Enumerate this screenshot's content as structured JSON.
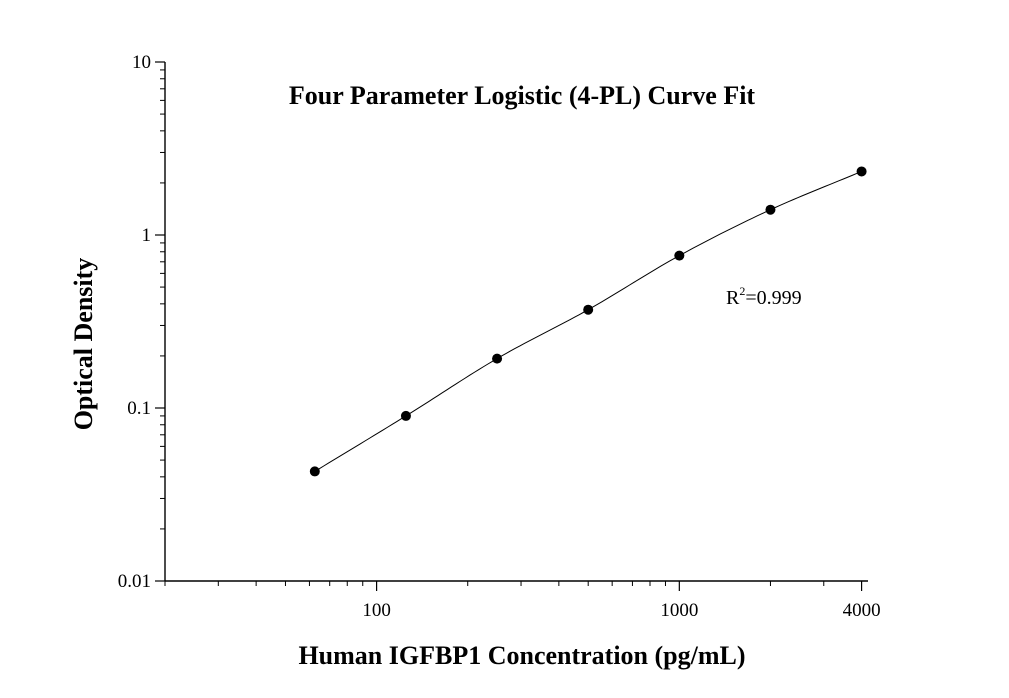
{
  "chart_data": {
    "type": "scatter",
    "title": "Four Parameter Logistic (4-PL) Curve Fit",
    "xlabel": "Human IGFBP1 Concentration (pg/mL)",
    "ylabel": "Optical Density",
    "x_scale": "log",
    "y_scale": "log",
    "xlim": [
      20,
      4200
    ],
    "ylim": [
      0.01,
      10
    ],
    "x_ticks": [
      {
        "value": 100,
        "label": "100"
      },
      {
        "value": 1000,
        "label": "1000"
      },
      {
        "value": 4000,
        "label": "4000"
      }
    ],
    "y_ticks": [
      {
        "value": 0.01,
        "label": "0.01"
      },
      {
        "value": 0.1,
        "label": "0.1"
      },
      {
        "value": 1,
        "label": "1"
      },
      {
        "value": 10,
        "label": "10"
      }
    ],
    "grid": false,
    "series": [
      {
        "x": [
          62.5,
          125,
          250,
          500,
          1000,
          2000,
          4000
        ],
        "y": [
          0.043,
          0.09,
          0.193,
          0.37,
          0.76,
          1.4,
          2.33
        ]
      }
    ],
    "fit_curve": {
      "model": "4-PL",
      "x_range": [
        62.5,
        4000
      ]
    },
    "annotation": {
      "base": "R",
      "superscript": "2",
      "text": "=0.999"
    }
  }
}
